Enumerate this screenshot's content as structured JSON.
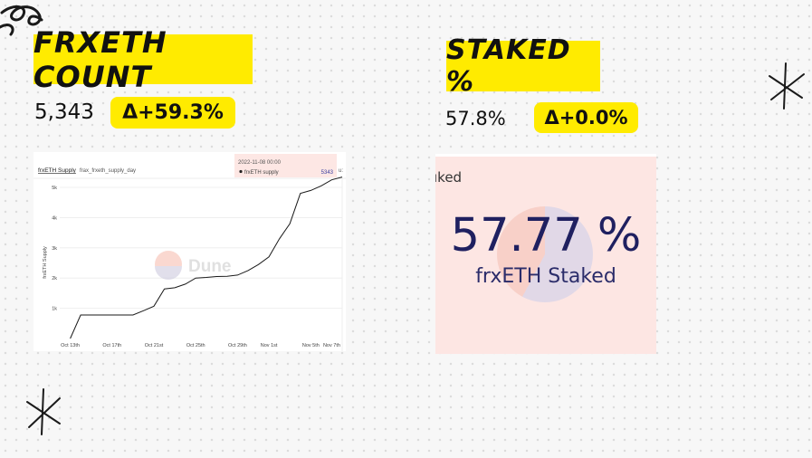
{
  "cards": [
    {
      "title": "FRXETH COUNT",
      "value": "5,343",
      "delta": "Δ+59.3%"
    },
    {
      "title": "STAKED %",
      "value": "57.8%",
      "delta": "Δ+0.0%"
    }
  ],
  "supply_chart": {
    "header_title": "frxETH Supply",
    "header_query": "frax_frxeth_supply_day",
    "tooltip": {
      "date": "2022-11-08 00:00",
      "series": "frxETH supply",
      "value": "5343"
    },
    "clipped_label": "u:",
    "watermark": "Dune"
  },
  "staked_counter": {
    "label": "ıked",
    "value": "57.77 %",
    "caption": "frxETH Staked",
    "staked_fraction": 0.5777
  },
  "colors": {
    "highlight": "#ffeb00",
    "line": "#1a1a1a",
    "counter_bg": "#fde6e3",
    "counter_text": "#1f2060"
  },
  "chart_data": {
    "type": "line",
    "title": "frxETH Supply",
    "xlabel": "",
    "ylabel": "frxETH Supply",
    "series": [
      {
        "name": "frxETH supply",
        "x": [
          "2022-10-13",
          "2022-10-14",
          "2022-10-15",
          "2022-10-16",
          "2022-10-17",
          "2022-10-18",
          "2022-10-19",
          "2022-10-20",
          "2022-10-21",
          "2022-10-22",
          "2022-10-23",
          "2022-10-24",
          "2022-10-25",
          "2022-10-26",
          "2022-10-27",
          "2022-10-28",
          "2022-10-29",
          "2022-10-30",
          "2022-10-31",
          "2022-11-01",
          "2022-11-02",
          "2022-11-03",
          "2022-11-04",
          "2022-11-05",
          "2022-11-06",
          "2022-11-07",
          "2022-11-08"
        ],
        "values": [
          0,
          780,
          780,
          780,
          780,
          780,
          780,
          920,
          1070,
          1640,
          1680,
          1800,
          2000,
          2020,
          2050,
          2060,
          2100,
          2250,
          2450,
          2700,
          3300,
          3800,
          4800,
          4900,
          5050,
          5250,
          5343
        ]
      }
    ],
    "x_ticks": [
      "Oct 13th",
      "Oct 17th",
      "Oct 21st",
      "Oct 25th",
      "Oct 29th",
      "Nov 1st",
      "Nov 5th",
      "Nov 7th"
    ],
    "x_tick_dates": [
      "2022-10-13",
      "2022-10-17",
      "2022-10-21",
      "2022-10-25",
      "2022-10-29",
      "2022-11-01",
      "2022-11-05",
      "2022-11-07"
    ],
    "y_ticks": [
      {
        "value": 1000,
        "label": "1k"
      },
      {
        "value": 2000,
        "label": "2k"
      },
      {
        "value": 3000,
        "label": "3k"
      },
      {
        "value": 4000,
        "label": "4k"
      },
      {
        "value": 5000,
        "label": "5k"
      }
    ],
    "ylim": [
      0,
      5300
    ],
    "xlim": [
      "2022-10-12",
      "2022-11-08"
    ],
    "grid": true
  }
}
